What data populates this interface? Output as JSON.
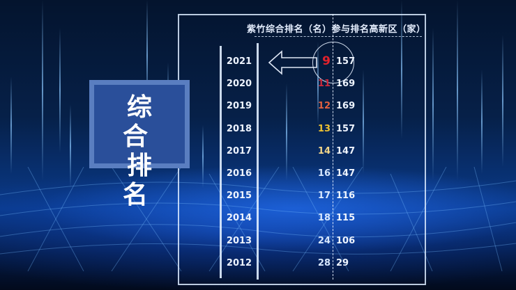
{
  "header": {
    "rank_column": "紫竹综合排名（名）",
    "count_column": "参与排名高新区（家）"
  },
  "badge": {
    "line1": "综 合",
    "line2": "排 名"
  },
  "rows": [
    {
      "year": "2021",
      "rank": "9",
      "count": "157",
      "rank_color": "#e3222c"
    },
    {
      "year": "2020",
      "rank": "11",
      "count": "169",
      "rank_color": "#cc2a3c"
    },
    {
      "year": "2019",
      "rank": "12",
      "count": "169",
      "rank_color": "#e2603f"
    },
    {
      "year": "2018",
      "rank": "13",
      "count": "157",
      "rank_color": "#efc232"
    },
    {
      "year": "2017",
      "rank": "14",
      "count": "147",
      "rank_color": "#f2d68a"
    },
    {
      "year": "2016",
      "rank": "16",
      "count": "147",
      "rank_color": "#d8e8ff"
    },
    {
      "year": "2015",
      "rank": "17",
      "count": "116",
      "rank_color": "#d8e8ff"
    },
    {
      "year": "2014",
      "rank": "18",
      "count": "115",
      "rank_color": "#d8e8ff"
    },
    {
      "year": "2013",
      "rank": "24",
      "count": "106",
      "rank_color": "#d8e8ff"
    },
    {
      "year": "2012",
      "rank": "28",
      "count": "29",
      "rank_color": "#d8e8ff"
    }
  ],
  "highlight": {
    "icon": "circle-highlight-icon",
    "arrow": "arrow-left-icon"
  }
}
